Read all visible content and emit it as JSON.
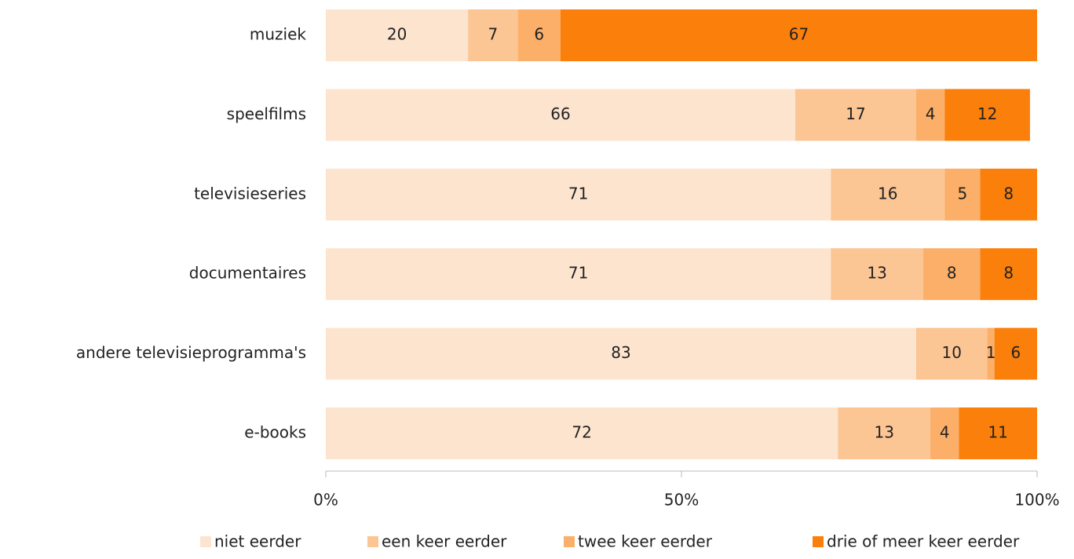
{
  "chart_data": {
    "type": "bar",
    "orientation": "horizontal",
    "stacked": true,
    "categories": [
      "muziek",
      "speelfilms",
      "televisieseries",
      "documentaires",
      "andere televisieprogramma's",
      "e-books"
    ],
    "series": [
      {
        "name": "niet eerder",
        "color": "#fde4cf",
        "values": [
          20,
          66,
          71,
          71,
          83,
          72
        ]
      },
      {
        "name": "een keer eerder",
        "color": "#fcc594",
        "values": [
          7,
          17,
          16,
          13,
          10,
          13
        ]
      },
      {
        "name": "twee keer eerder",
        "color": "#fbaf68",
        "values": [
          6,
          4,
          5,
          8,
          1,
          4
        ]
      },
      {
        "name": "drie of meer keer eerder",
        "color": "#fb7f0b",
        "values": [
          67,
          12,
          8,
          8,
          6,
          11
        ]
      }
    ],
    "xlim": [
      0,
      100
    ],
    "xticks": [
      {
        "value": 0,
        "label": "0%"
      },
      {
        "value": 50,
        "label": "50%"
      },
      {
        "value": 100,
        "label": "100%"
      }
    ],
    "legend": "bottom"
  }
}
